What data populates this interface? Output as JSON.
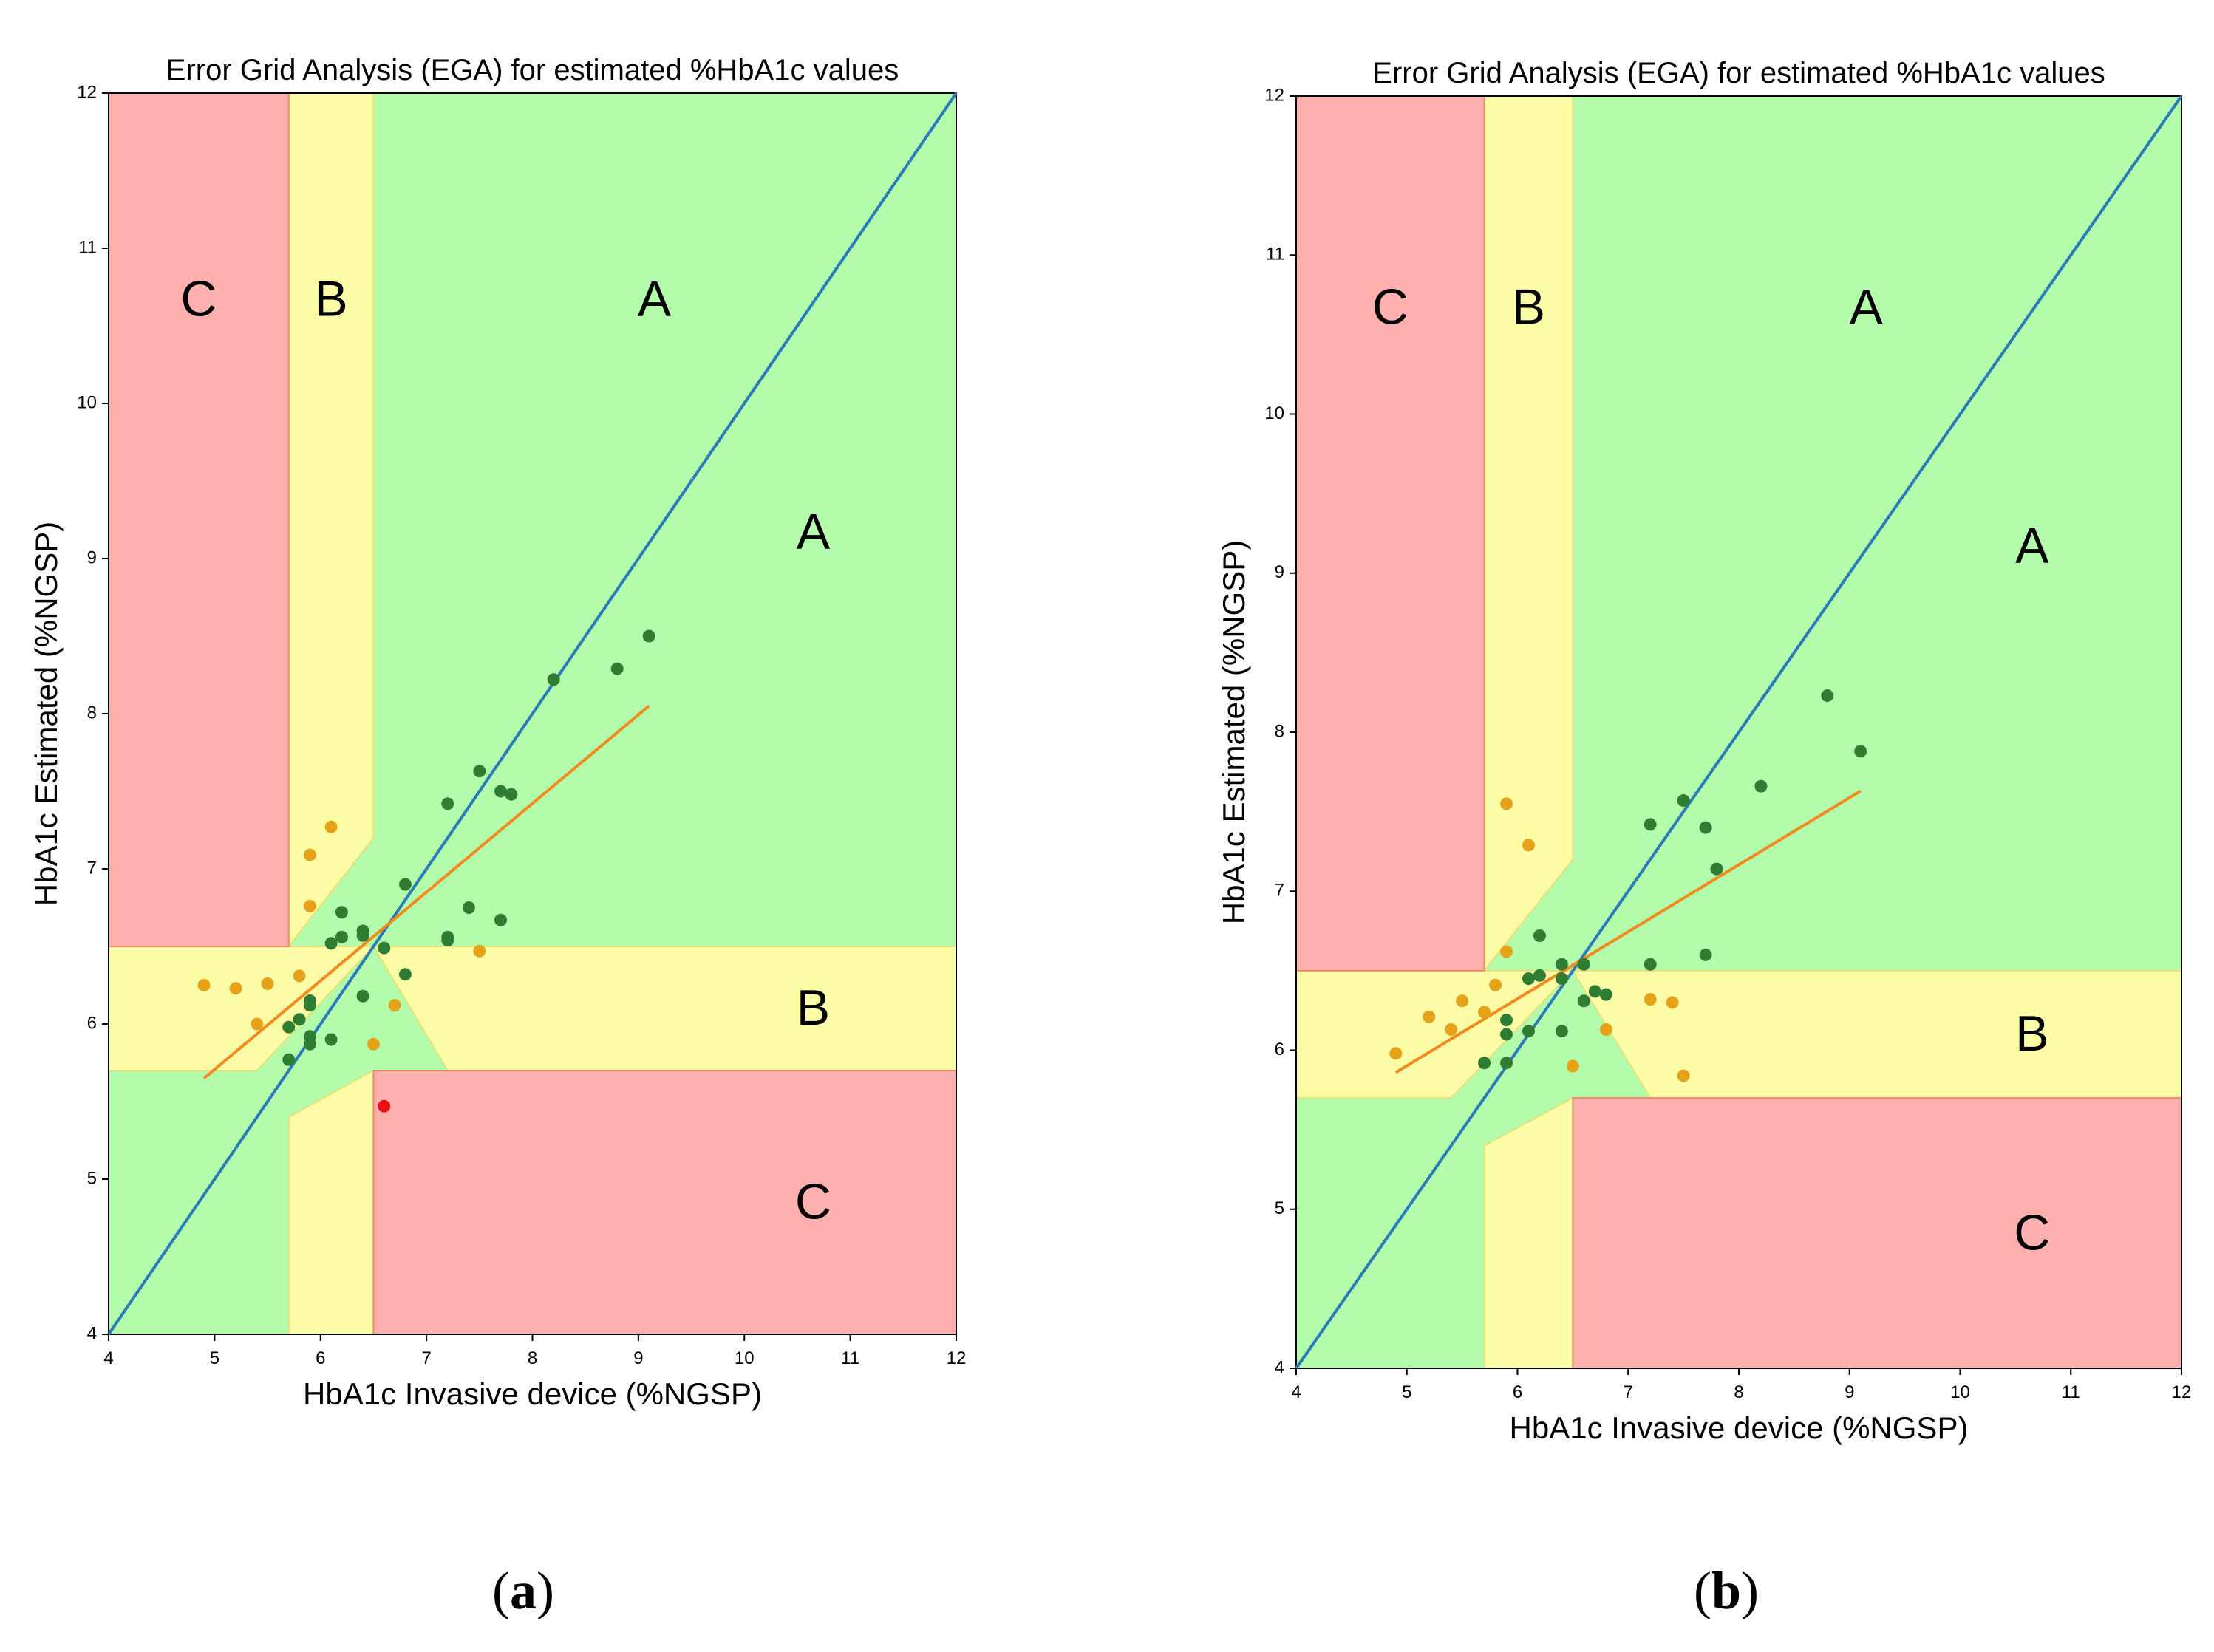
{
  "panels": [
    {
      "label": "a",
      "chart_data": {
        "type": "scatter",
        "title": "Error Grid Analysis (EGA) for estimated %HbA1c values",
        "xlabel": "HbA1c Invasive device (%NGSP)",
        "ylabel": "HbA1c Estimated (%NGSP)",
        "xlim": [
          4,
          12
        ],
        "ylim": [
          4,
          12
        ],
        "xticks": [
          4,
          5,
          6,
          7,
          8,
          9,
          10,
          11,
          12
        ],
        "yticks": [
          4,
          5,
          6,
          7,
          8,
          9,
          10,
          11,
          12
        ],
        "zone_labels": [
          {
            "text": "C",
            "x": 4.85,
            "y": 10.65
          },
          {
            "text": "B",
            "x": 6.1,
            "y": 10.65
          },
          {
            "text": "A",
            "x": 9.15,
            "y": 10.65
          },
          {
            "text": "A",
            "x": 10.65,
            "y": 9.15
          },
          {
            "text": "B",
            "x": 10.65,
            "y": 6.08
          },
          {
            "text": "C",
            "x": 10.65,
            "y": 4.83
          }
        ],
        "identity_line": {
          "x": [
            4,
            12
          ],
          "y": [
            4,
            12
          ]
        },
        "regression_line": {
          "x": [
            4.9,
            9.1
          ],
          "y": [
            5.65,
            8.05
          ]
        },
        "series": [
          {
            "name": "Zone A",
            "color": "#2e7d32",
            "points": [
              [
                5.7,
                5.77
              ],
              [
                5.7,
                5.98
              ],
              [
                5.8,
                6.03
              ],
              [
                5.9,
                6.12
              ],
              [
                5.9,
                6.15
              ],
              [
                5.9,
                5.87
              ],
              [
                5.9,
                5.92
              ],
              [
                6.1,
                5.9
              ],
              [
                6.1,
                6.52
              ],
              [
                6.2,
                6.56
              ],
              [
                6.2,
                6.72
              ],
              [
                6.4,
                6.6
              ],
              [
                6.4,
                6.57
              ],
              [
                6.4,
                6.18
              ],
              [
                6.6,
                6.49
              ],
              [
                6.8,
                6.9
              ],
              [
                6.8,
                6.32
              ],
              [
                7.2,
                7.42
              ],
              [
                7.2,
                6.56
              ],
              [
                7.2,
                6.54
              ],
              [
                7.4,
                6.75
              ],
              [
                7.5,
                7.63
              ],
              [
                7.7,
                7.5
              ],
              [
                7.8,
                7.48
              ],
              [
                7.7,
                6.67
              ],
              [
                8.2,
                8.22
              ],
              [
                8.8,
                8.29
              ],
              [
                9.1,
                8.5
              ]
            ]
          },
          {
            "name": "Zone B",
            "color": "#e6a219",
            "points": [
              [
                4.9,
                6.25
              ],
              [
                5.2,
                6.23
              ],
              [
                5.4,
                6.0
              ],
              [
                5.5,
                6.26
              ],
              [
                5.8,
                6.31
              ],
              [
                5.9,
                7.09
              ],
              [
                5.9,
                6.76
              ],
              [
                6.1,
                7.27
              ],
              [
                6.5,
                5.87
              ],
              [
                6.7,
                6.12
              ],
              [
                7.5,
                6.47
              ]
            ]
          },
          {
            "name": "Zone C",
            "color": "#ee1111",
            "points": [
              [
                6.6,
                5.47
              ]
            ]
          }
        ]
      }
    },
    {
      "label": "b",
      "chart_data": {
        "type": "scatter",
        "title": "Error Grid Analysis (EGA) for estimated %HbA1c values",
        "xlabel": "HbA1c Invasive device (%NGSP)",
        "ylabel": "HbA1c Estimated (%NGSP)",
        "xlim": [
          4,
          12
        ],
        "ylim": [
          4,
          12
        ],
        "xticks": [
          4,
          5,
          6,
          7,
          8,
          9,
          10,
          11,
          12
        ],
        "yticks": [
          4,
          5,
          6,
          7,
          8,
          9,
          10,
          11,
          12
        ],
        "zone_labels": [
          {
            "text": "C",
            "x": 4.85,
            "y": 10.65
          },
          {
            "text": "B",
            "x": 6.1,
            "y": 10.65
          },
          {
            "text": "A",
            "x": 9.15,
            "y": 10.65
          },
          {
            "text": "A",
            "x": 10.65,
            "y": 9.15
          },
          {
            "text": "B",
            "x": 10.65,
            "y": 6.08
          },
          {
            "text": "C",
            "x": 10.65,
            "y": 4.83
          }
        ],
        "identity_line": {
          "x": [
            4,
            12
          ],
          "y": [
            4,
            12
          ]
        },
        "regression_line": {
          "x": [
            4.9,
            9.1
          ],
          "y": [
            5.86,
            7.63
          ]
        },
        "series": [
          {
            "name": "Zone A",
            "color": "#2e7d32",
            "points": [
              [
                5.7,
                5.92
              ],
              [
                5.9,
                5.92
              ],
              [
                5.9,
                6.1
              ],
              [
                5.9,
                6.19
              ],
              [
                6.1,
                6.12
              ],
              [
                6.1,
                6.45
              ],
              [
                6.2,
                6.47
              ],
              [
                6.2,
                6.72
              ],
              [
                6.4,
                6.45
              ],
              [
                6.4,
                6.54
              ],
              [
                6.4,
                6.12
              ],
              [
                6.6,
                6.31
              ],
              [
                6.6,
                6.54
              ],
              [
                6.7,
                6.37
              ],
              [
                6.8,
                6.35
              ],
              [
                7.2,
                7.42
              ],
              [
                7.2,
                6.54
              ],
              [
                7.5,
                7.57
              ],
              [
                7.7,
                7.4
              ],
              [
                7.7,
                6.6
              ],
              [
                7.8,
                7.14
              ],
              [
                8.2,
                7.66
              ],
              [
                8.8,
                8.23
              ],
              [
                9.1,
                7.88
              ]
            ]
          },
          {
            "name": "Zone B",
            "color": "#e6a219",
            "points": [
              [
                4.9,
                5.98
              ],
              [
                5.2,
                6.21
              ],
              [
                5.4,
                6.13
              ],
              [
                5.5,
                6.31
              ],
              [
                5.7,
                6.24
              ],
              [
                5.8,
                6.41
              ],
              [
                5.9,
                6.62
              ],
              [
                5.9,
                7.55
              ],
              [
                6.1,
                7.29
              ],
              [
                6.5,
                5.9
              ],
              [
                6.8,
                6.13
              ],
              [
                7.2,
                6.32
              ],
              [
                7.4,
                6.3
              ],
              [
                7.5,
                5.84
              ]
            ]
          }
        ]
      }
    }
  ]
}
